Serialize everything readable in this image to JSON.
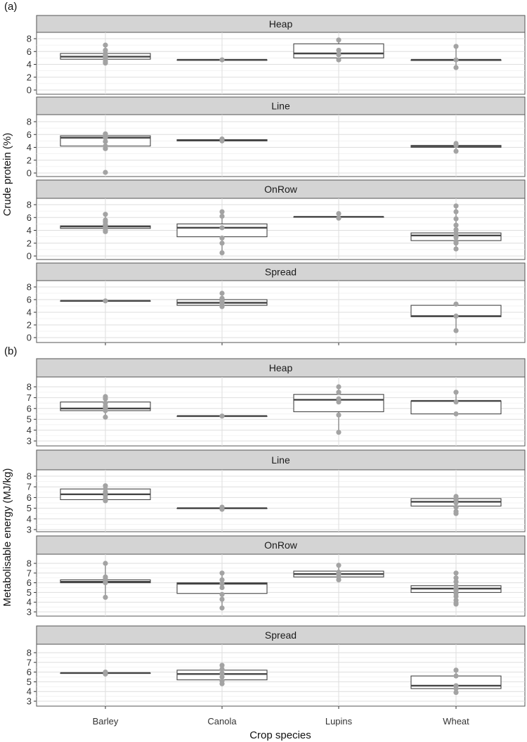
{
  "figure": {
    "sub_labels": [
      "(a)",
      "(b)"
    ],
    "xlabel": "Crop species",
    "x_tick_labels": [
      "Barley",
      "Canola",
      "Lupins",
      "Wheat"
    ]
  },
  "chart_data": [
    {
      "type": "box",
      "sub_label": "(a)",
      "ylabel": "Crude protein (%)",
      "ylim": [
        0,
        8
      ],
      "y_ticks": [
        0,
        2,
        4,
        6,
        8
      ],
      "categories": [
        "Barley",
        "Canola",
        "Lupins",
        "Wheat"
      ],
      "facets": [
        {
          "name": "Heap",
          "boxes": [
            {
              "category": "Barley",
              "q1": 4.8,
              "median": 5.2,
              "q3": 5.7,
              "whisker_low": 4.1,
              "whisker_high": 7.0,
              "points": [
                7.0,
                6.2,
                5.7,
                5.4,
                5.2,
                5.0,
                4.8,
                4.5,
                4.2
              ]
            },
            {
              "category": "Canola",
              "q1": 4.7,
              "median": 4.7,
              "q3": 4.7,
              "whisker_low": 4.7,
              "whisker_high": 4.7,
              "points": [
                4.7
              ]
            },
            {
              "category": "Lupins",
              "q1": 5.0,
              "median": 5.7,
              "q3": 7.2,
              "whisker_low": 4.6,
              "whisker_high": 7.8,
              "points": [
                7.8,
                6.2,
                5.5,
                4.7
              ]
            },
            {
              "category": "Wheat",
              "q1": 4.6,
              "median": 4.7,
              "q3": 4.7,
              "whisker_low": 3.4,
              "whisker_high": 6.8,
              "points": [
                6.8,
                4.7,
                3.5
              ]
            }
          ]
        },
        {
          "name": "Line",
          "boxes": [
            {
              "category": "Barley",
              "q1": 4.2,
              "median": 5.5,
              "q3": 5.8,
              "whisker_low": 3.7,
              "whisker_high": 6.1,
              "points": [
                6.1,
                5.8,
                5.5,
                4.9,
                4.2,
                3.8,
                0.1
              ]
            },
            {
              "category": "Canola",
              "q1": 5.0,
              "median": 5.1,
              "q3": 5.2,
              "whisker_low": 4.9,
              "whisker_high": 5.3,
              "points": [
                5.3,
                5.0
              ]
            },
            {
              "category": "Wheat",
              "q1": 4.0,
              "median": 4.2,
              "q3": 4.3,
              "whisker_low": 3.3,
              "whisker_high": 4.6,
              "points": [
                4.6,
                4.3,
                3.4
              ]
            }
          ]
        },
        {
          "name": "OnRow",
          "boxes": [
            {
              "category": "Barley",
              "q1": 4.3,
              "median": 4.6,
              "q3": 4.7,
              "whisker_low": 3.7,
              "whisker_high": 6.5,
              "points": [
                6.5,
                5.6,
                5.3,
                4.9,
                4.6,
                4.3,
                4.0,
                3.8
              ]
            },
            {
              "category": "Canola",
              "q1": 3.0,
              "median": 4.4,
              "q3": 5.0,
              "whisker_low": 0.4,
              "whisker_high": 6.9,
              "points": [
                6.9,
                6.2,
                4.4,
                2.8,
                2.0,
                0.5
              ]
            },
            {
              "category": "Lupins",
              "q1": 6.1,
              "median": 6.1,
              "q3": 6.1,
              "whisker_low": 5.8,
              "whisker_high": 6.6,
              "points": [
                6.6,
                5.9
              ]
            },
            {
              "category": "Wheat",
              "q1": 2.4,
              "median": 3.2,
              "q3": 3.6,
              "whisker_low": 1.0,
              "whisker_high": 7.8,
              "points": [
                7.8,
                6.9,
                5.8,
                4.8,
                4.1,
                3.6,
                3.2,
                2.9,
                2.3,
                2.0,
                1.1
              ]
            }
          ]
        },
        {
          "name": "Spread",
          "boxes": [
            {
              "category": "Barley",
              "q1": 5.8,
              "median": 5.8,
              "q3": 5.8,
              "whisker_low": 5.8,
              "whisker_high": 5.8,
              "points": [
                5.8
              ]
            },
            {
              "category": "Canola",
              "q1": 5.1,
              "median": 5.5,
              "q3": 6.0,
              "whisker_low": 4.9,
              "whisker_high": 7.0,
              "points": [
                7.0,
                6.2,
                5.8,
                5.5,
                5.1,
                4.9
              ]
            },
            {
              "category": "Wheat",
              "q1": 3.3,
              "median": 3.4,
              "q3": 5.1,
              "whisker_low": 1.0,
              "whisker_high": 5.3,
              "points": [
                5.3,
                3.4,
                1.1
              ]
            }
          ]
        }
      ]
    },
    {
      "type": "box",
      "sub_label": "(b)",
      "ylabel": "Metabolisable energy (MJ/kg)",
      "ylim": [
        3,
        8
      ],
      "y_ticks": [
        3,
        4,
        5,
        6,
        7,
        8
      ],
      "categories": [
        "Barley",
        "Canola",
        "Lupins",
        "Wheat"
      ],
      "facets": [
        {
          "name": "Heap",
          "boxes": [
            {
              "category": "Barley",
              "q1": 5.8,
              "median": 6.0,
              "q3": 6.6,
              "whisker_low": 5.2,
              "whisker_high": 7.1,
              "points": [
                7.1,
                6.9,
                6.5,
                6.2,
                6.0,
                5.8,
                5.2
              ]
            },
            {
              "category": "Canola",
              "q1": 5.3,
              "median": 5.3,
              "q3": 5.3,
              "whisker_low": 5.3,
              "whisker_high": 5.3,
              "points": [
                5.3
              ]
            },
            {
              "category": "Lupins",
              "q1": 5.7,
              "median": 6.8,
              "q3": 7.3,
              "whisker_low": 3.7,
              "whisker_high": 8.0,
              "points": [
                8.0,
                7.5,
                6.9,
                6.6,
                5.4,
                3.8
              ]
            },
            {
              "category": "Wheat",
              "q1": 5.5,
              "median": 6.7,
              "q3": 6.7,
              "whisker_low": 5.4,
              "whisker_high": 7.5,
              "points": [
                7.5,
                6.6,
                5.5
              ]
            }
          ]
        },
        {
          "name": "Line",
          "boxes": [
            {
              "category": "Barley",
              "q1": 5.8,
              "median": 6.3,
              "q3": 6.8,
              "whisker_low": 5.6,
              "whisker_high": 7.1,
              "points": [
                7.1,
                6.8,
                6.5,
                6.2,
                5.9,
                5.7
              ]
            },
            {
              "category": "Canola",
              "q1": 5.0,
              "median": 5.0,
              "q3": 5.0,
              "whisker_low": 4.9,
              "whisker_high": 5.2,
              "points": [
                5.1,
                4.9
              ]
            },
            {
              "category": "Wheat",
              "q1": 5.2,
              "median": 5.6,
              "q3": 5.9,
              "whisker_low": 4.5,
              "whisker_high": 6.1,
              "points": [
                6.1,
                5.8,
                5.5,
                5.1,
                4.7,
                4.5
              ]
            }
          ]
        },
        {
          "name": "OnRow",
          "boxes": [
            {
              "category": "Barley",
              "q1": 6.0,
              "median": 6.1,
              "q3": 6.3,
              "whisker_low": 4.4,
              "whisker_high": 8.0,
              "points": [
                8.0,
                6.6,
                6.4,
                6.2,
                6.0,
                4.5
              ]
            },
            {
              "category": "Canola",
              "q1": 4.9,
              "median": 5.9,
              "q3": 6.0,
              "whisker_low": 3.4,
              "whisker_high": 7.0,
              "points": [
                7.0,
                6.3,
                5.9,
                5.5,
                4.8,
                4.3,
                3.4
              ]
            },
            {
              "category": "Lupins",
              "q1": 6.6,
              "median": 6.9,
              "q3": 7.2,
              "whisker_low": 6.3,
              "whisker_high": 7.8,
              "points": [
                7.8,
                7.1,
                6.9,
                6.6,
                6.3
              ]
            },
            {
              "category": "Wheat",
              "q1": 5.0,
              "median": 5.4,
              "q3": 5.7,
              "whisker_low": 3.8,
              "whisker_high": 7.0,
              "points": [
                7.0,
                6.5,
                6.1,
                5.7,
                5.4,
                5.2,
                4.9,
                4.6,
                4.2,
                3.9,
                3.8
              ]
            }
          ]
        },
        {
          "name": "Spread",
          "boxes": [
            {
              "category": "Barley",
              "q1": 5.9,
              "median": 5.9,
              "q3": 5.9,
              "whisker_low": 5.8,
              "whisker_high": 6.0,
              "points": [
                6.0,
                5.8
              ]
            },
            {
              "category": "Canola",
              "q1": 5.2,
              "median": 5.8,
              "q3": 6.2,
              "whisker_low": 4.8,
              "whisker_high": 6.7,
              "points": [
                6.7,
                6.3,
                5.9,
                5.5,
                5.1,
                4.8
              ]
            },
            {
              "category": "Wheat",
              "q1": 4.3,
              "median": 4.6,
              "q3": 5.6,
              "whisker_low": 3.8,
              "whisker_high": 6.2,
              "points": [
                6.2,
                5.6,
                4.6,
                4.3,
                3.9
              ]
            }
          ]
        }
      ]
    }
  ]
}
